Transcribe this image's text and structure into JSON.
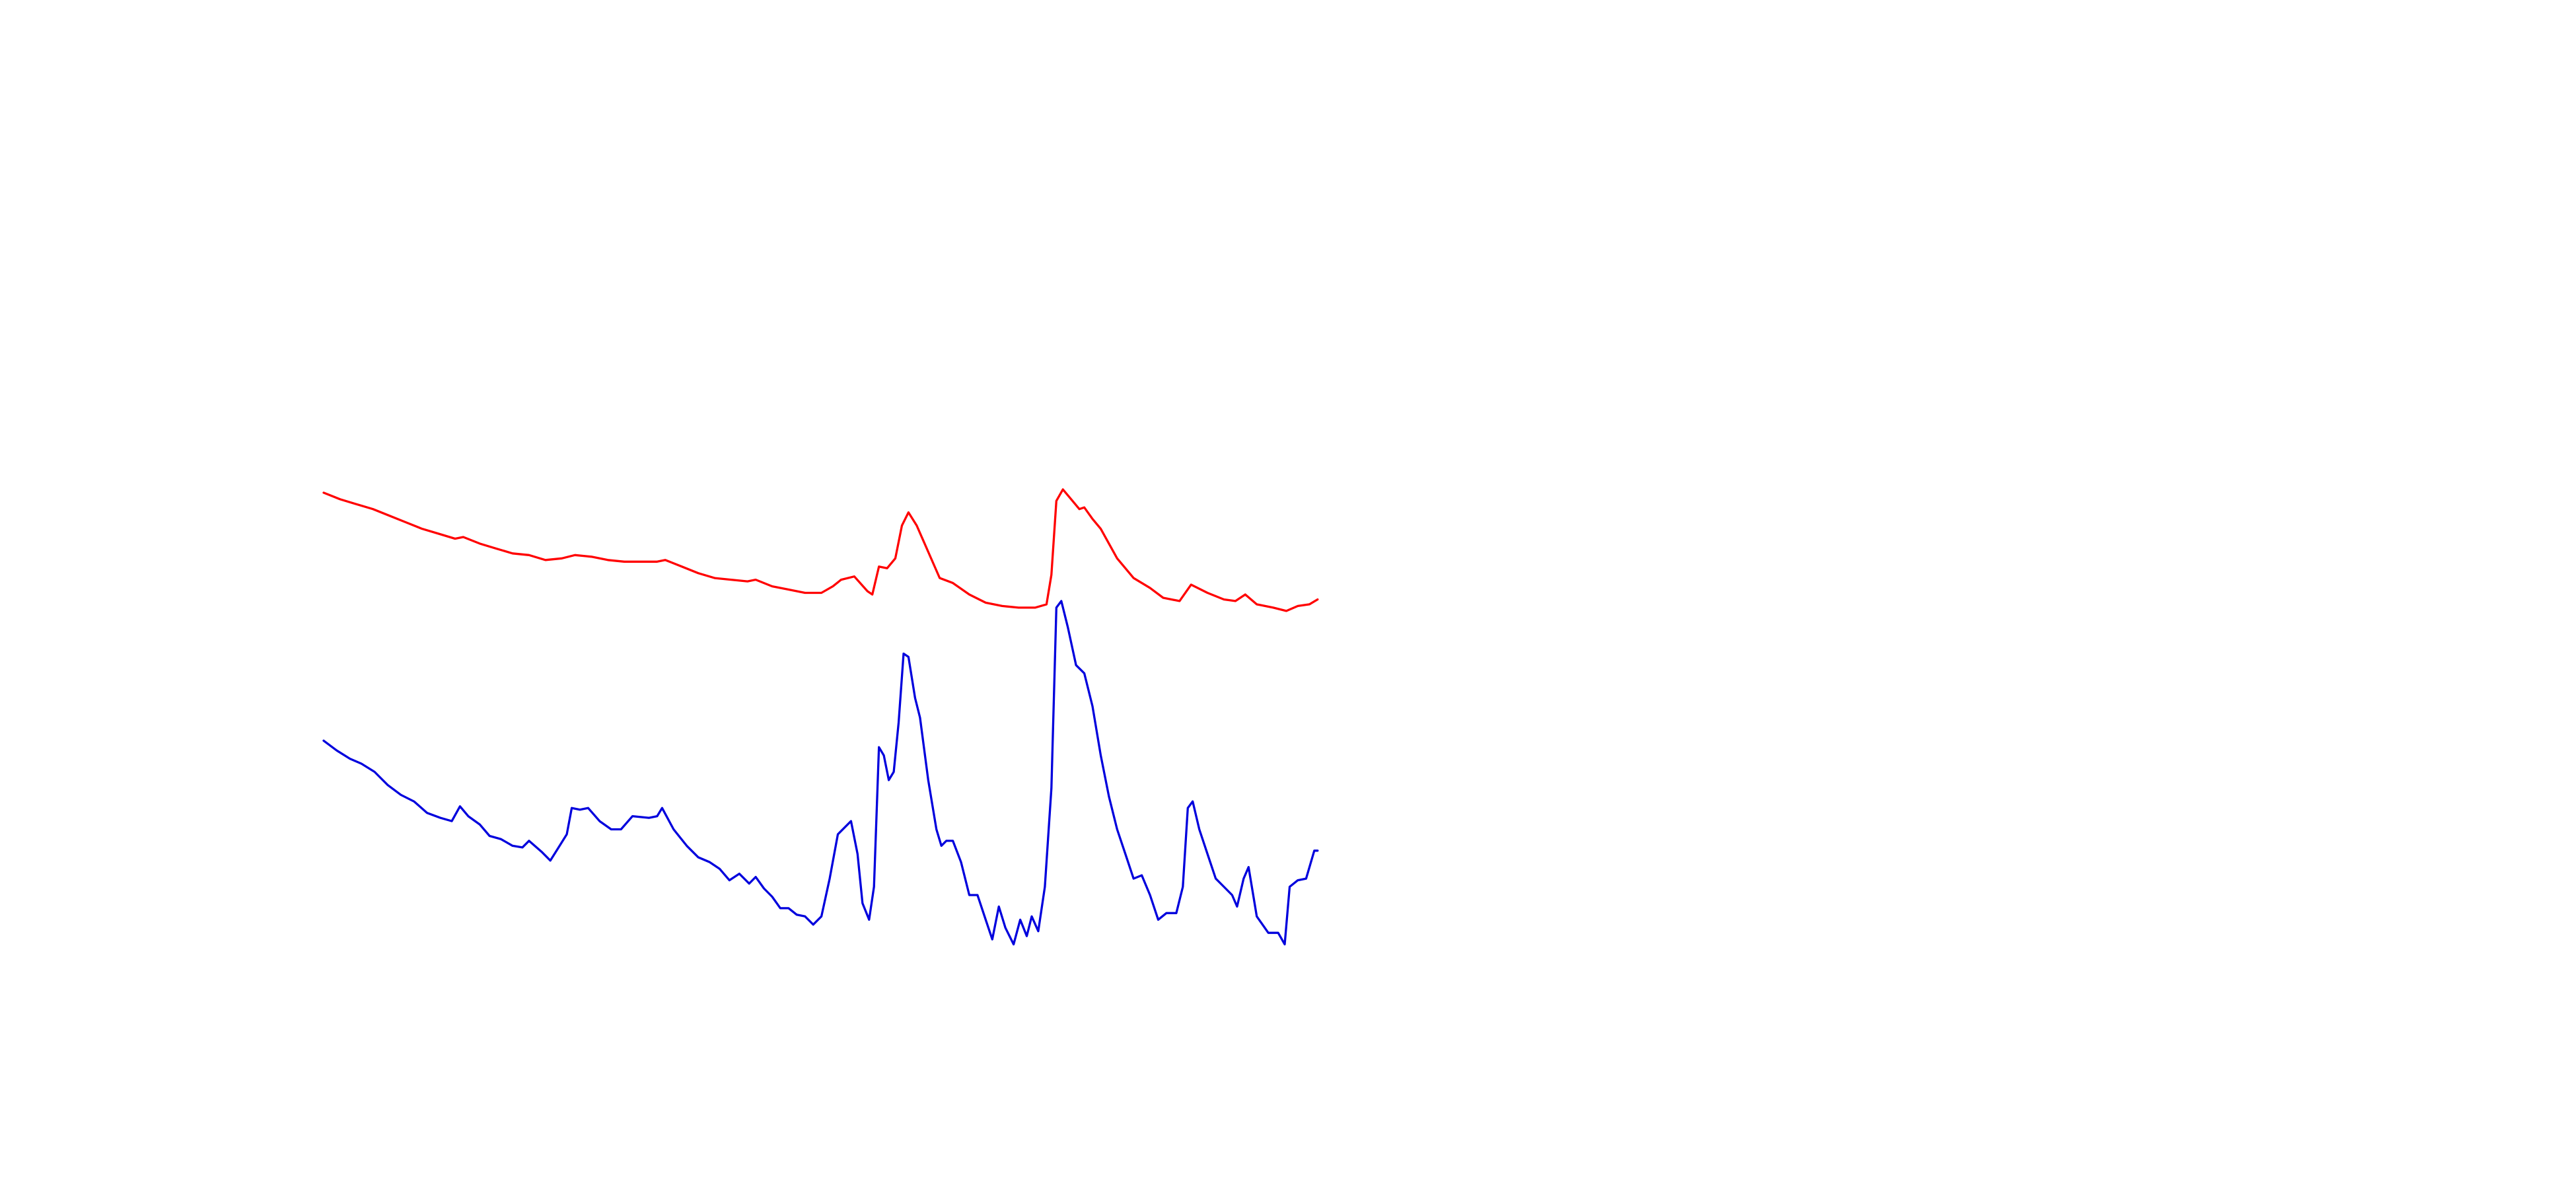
{
  "chart_data": {
    "type": "line",
    "xlim": [
      0,
      1568
    ],
    "ylim": [
      0,
      724
    ],
    "series": [
      {
        "color": "#ff0000",
        "x": [
          197,
          207,
          217,
          227,
          237,
          247,
          257,
          267,
          277,
          282,
          292,
          302,
          312,
          322,
          332,
          342,
          350,
          360,
          370,
          380,
          390,
          400,
          405,
          415,
          425,
          435,
          445,
          455,
          460,
          470,
          480,
          490,
          500,
          507,
          512,
          520,
          528,
          531,
          535,
          540,
          545,
          549,
          553,
          558,
          565,
          572,
          580,
          590,
          600,
          610,
          620,
          630,
          637,
          640,
          643,
          647,
          652,
          657,
          660,
          665,
          670,
          680,
          690,
          700,
          708,
          718,
          725,
          735,
          745,
          752,
          758,
          765,
          775,
          783,
          790,
          797,
          802
        ],
        "values": [
          424,
          420,
          417,
          414,
          410,
          406,
          402,
          399,
          396,
          397,
          393,
          390,
          387,
          386,
          383,
          384,
          386,
          385,
          383,
          382,
          382,
          382,
          383,
          379,
          375,
          372,
          371,
          370,
          371,
          367,
          365,
          363,
          363,
          367,
          371,
          373,
          364,
          362,
          379,
          378,
          384,
          404,
          412,
          404,
          388,
          372,
          369,
          362,
          357,
          355,
          354,
          354,
          356,
          374,
          419,
          426,
          420,
          414,
          415,
          408,
          402,
          384,
          372,
          366,
          360,
          358,
          368,
          363,
          359,
          358,
          362,
          356,
          354,
          352,
          355,
          356,
          359
        ]
      },
      {
        "color": "#0000dd",
        "x": [
          197,
          205,
          213,
          220,
          228,
          236,
          244,
          252,
          260,
          268,
          275,
          280,
          285,
          292,
          298,
          305,
          312,
          318,
          322,
          330,
          335,
          340,
          345,
          348,
          353,
          358,
          365,
          372,
          378,
          385,
          395,
          400,
          403,
          410,
          418,
          425,
          432,
          438,
          444,
          450,
          456,
          460,
          465,
          470,
          475,
          480,
          485,
          490,
          495,
          500,
          505,
          510,
          515,
          518,
          522,
          525,
          529,
          532,
          535,
          538,
          541,
          544,
          547,
          550,
          553,
          557,
          560,
          565,
          570,
          573,
          576,
          580,
          585,
          590,
          595,
          600,
          604,
          608,
          612,
          617,
          621,
          625,
          628,
          632,
          636,
          640,
          643,
          646,
          650,
          655,
          660,
          665,
          670,
          675,
          680,
          685,
          690,
          695,
          700,
          705,
          710,
          716,
          720,
          723,
          726,
          730,
          735,
          740,
          745,
          750,
          753,
          757,
          760,
          765,
          772,
          778,
          782,
          785,
          790,
          795,
          800,
          802
        ],
        "values": [
          273,
          267,
          262,
          259,
          254,
          246,
          240,
          236,
          229,
          226,
          224,
          233,
          227,
          222,
          215,
          213,
          209,
          208,
          212,
          205,
          200,
          208,
          216,
          232,
          231,
          232,
          224,
          219,
          219,
          227,
          226,
          227,
          232,
          219,
          209,
          202,
          199,
          195,
          188,
          192,
          186,
          190,
          183,
          178,
          171,
          171,
          167,
          166,
          161,
          166,
          189,
          216,
          221,
          224,
          204,
          174,
          164,
          184,
          269,
          264,
          249,
          254,
          284,
          326,
          324,
          299,
          287,
          249,
          219,
          209,
          212,
          212,
          199,
          179,
          179,
          164,
          152,
          172,
          159,
          149,
          164,
          154,
          166,
          157,
          184,
          244,
          354,
          358,
          342,
          319,
          314,
          294,
          264,
          239,
          219,
          204,
          189,
          191,
          179,
          164,
          168,
          168,
          184,
          232,
          236,
          219,
          204,
          189,
          184,
          179,
          172,
          189,
          196,
          166,
          156,
          156,
          149,
          184,
          188,
          189,
          206,
          206
        ]
      }
    ]
  }
}
